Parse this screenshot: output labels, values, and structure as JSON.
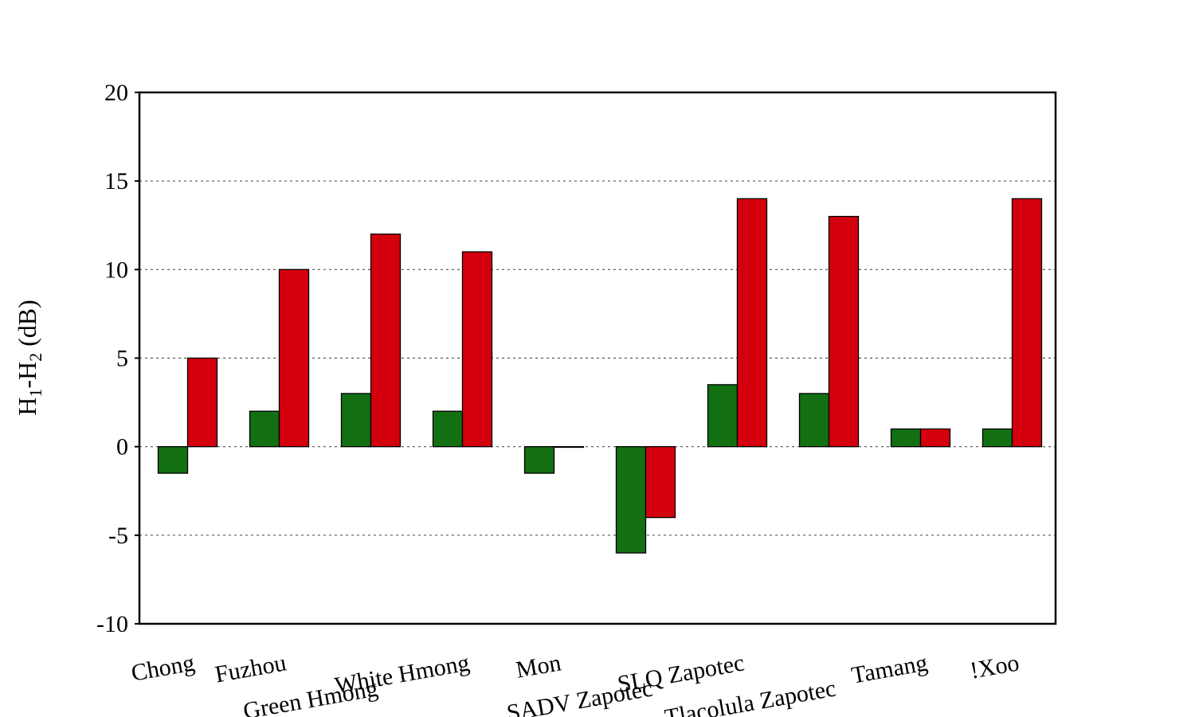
{
  "chart_data": {
    "type": "bar",
    "title": "",
    "xlabel": "",
    "ylabel": {
      "main": "H",
      "sub1": "1",
      "dash": "-H",
      "sub2": "2",
      "unit": " (dB)"
    },
    "ylim": [
      -10,
      20
    ],
    "yticks": [
      -10,
      -5,
      0,
      5,
      10,
      15,
      20
    ],
    "ytick_labels": [
      "-10",
      "-5",
      "0",
      "5",
      "10",
      "15",
      "20"
    ],
    "grid": "horizontal dotted",
    "legend": "none",
    "categories": [
      "Chong",
      "Fuzhou",
      "Green Hmong",
      "White Hmong",
      "Mon",
      "SADV Zapotec",
      "SLQ Zapotec",
      "Tlacolula Zapotec",
      "Tamang",
      "!Xoo"
    ],
    "series": [
      {
        "color": "#127012",
        "values": [
          -1.5,
          2,
          3,
          2,
          -1.5,
          -6,
          3.5,
          3,
          1,
          1
        ]
      },
      {
        "color": "#d4000e",
        "values": [
          5,
          10,
          12,
          11,
          0,
          -4,
          14,
          13,
          1,
          14
        ]
      }
    ]
  }
}
